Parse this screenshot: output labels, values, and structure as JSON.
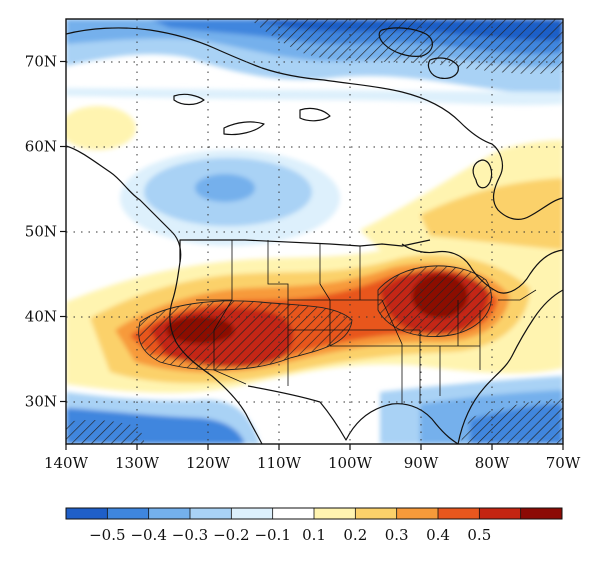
{
  "map": {
    "lat_ticks": [
      {
        "value": 70,
        "label": "70N"
      },
      {
        "value": 60,
        "label": "60N"
      },
      {
        "value": 50,
        "label": "50N"
      },
      {
        "value": 40,
        "label": "40N"
      },
      {
        "value": 30,
        "label": "30N"
      }
    ],
    "lon_ticks": [
      {
        "value": -140,
        "label": "140W"
      },
      {
        "value": -130,
        "label": "130W"
      },
      {
        "value": -120,
        "label": "120W"
      },
      {
        "value": -110,
        "label": "110W"
      },
      {
        "value": -100,
        "label": "100W"
      },
      {
        "value": -90,
        "label": "90W"
      },
      {
        "value": -80,
        "label": "80W"
      },
      {
        "value": -70,
        "label": "70W"
      }
    ],
    "extent": {
      "lon": [
        -140,
        -70
      ],
      "lat": [
        25,
        75
      ]
    },
    "grid": "dotted",
    "hatching": "significant regions"
  },
  "colorbar": {
    "colors": [
      "#1f5fc8",
      "#3f86de",
      "#74b0ec",
      "#a9d2f5",
      "#ddf0fc",
      "#ffffff",
      "#fff4b0",
      "#fbd16a",
      "#f79a3a",
      "#e8571e",
      "#c42512",
      "#8c0a05"
    ],
    "labels": [
      "−0.5",
      "−0.4",
      "−0.3",
      "−0.2",
      "−0.1",
      "0.1",
      "0.2",
      "0.3",
      "0.4",
      "0.5"
    ]
  }
}
